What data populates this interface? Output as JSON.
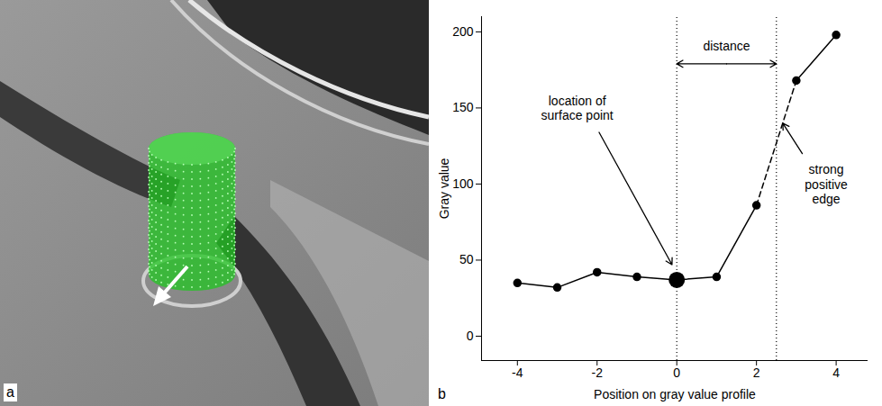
{
  "image_panel": {
    "panel_letter": "a"
  },
  "chart_data": {
    "type": "line",
    "panel_letter": "b",
    "x_label": "Position on gray value profile",
    "y_label": "Gray value",
    "x": [
      -4,
      -3,
      -2,
      -1,
      0,
      1,
      2,
      3,
      4
    ],
    "series": [
      {
        "color": "#000000",
        "line_style": "solid",
        "marker": "circle",
        "values": [
          35,
          32,
          42,
          39,
          37,
          39,
          86,
          null,
          null
        ]
      },
      {
        "color": "#000000",
        "line_style": "dashed",
        "marker": "none",
        "values": [
          null,
          null,
          null,
          null,
          null,
          null,
          86,
          168,
          null
        ]
      },
      {
        "color": "#000000",
        "line_style": "solid",
        "marker": "circle",
        "values": [
          null,
          null,
          null,
          null,
          null,
          null,
          null,
          168,
          198
        ]
      }
    ],
    "xlim": [
      -4.9,
      4.8
    ],
    "ylim": [
      -16,
      210
    ],
    "xticks": [
      -4,
      -2,
      0,
      2,
      4
    ],
    "yticks": [
      0,
      50,
      100,
      150,
      200
    ],
    "grid": false,
    "highlight": {
      "x": 0,
      "y": 37
    },
    "vlines": [
      0,
      2.5
    ],
    "annotations": [
      {
        "text": "distance",
        "x": 1.25,
        "y": 191,
        "arrows": [
          {
            "x1": 1.25,
            "y1": 179,
            "x2": 0,
            "y2": 179
          },
          {
            "x1": 1.25,
            "y1": 179,
            "x2": 2.5,
            "y2": 179
          }
        ]
      },
      {
        "text": "location of\nsurface point",
        "x": -2.5,
        "y": 150,
        "arrows": [
          {
            "x1": -1.95,
            "y1": 134,
            "x2": -0.12,
            "y2": 47
          }
        ]
      },
      {
        "text": "strong\npositive\nedge",
        "x": 3.75,
        "y": 100,
        "arrows": [
          {
            "x1": 3.15,
            "y1": 120,
            "x2": 2.66,
            "y2": 140
          }
        ]
      }
    ]
  }
}
